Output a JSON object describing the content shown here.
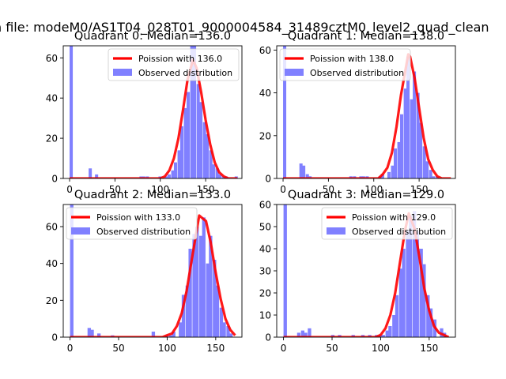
{
  "figure": {
    "suptitle": "n file: modeM0/AS1T04_028T01_9000004584_31489cztM0_level2_quad_clean"
  },
  "colors": {
    "hist": "#8080ff",
    "poisson": "#ff0000",
    "axes": "#000000"
  },
  "chart_data": [
    {
      "type": "bar+line",
      "title": "Quadrant 0: Median=136.0",
      "median": 136.0,
      "xlim": [
        -7,
        190
      ],
      "ylim": [
        0,
        66
      ],
      "xticks": [
        0,
        50,
        100,
        150
      ],
      "yticks": [
        0,
        20,
        40,
        60
      ],
      "legend_position": "top-right",
      "legend": [
        "Poission with 136.0",
        "Observed distribution"
      ],
      "hist": {
        "bin_width": 3.5,
        "bins": [
          [
            0,
            66
          ],
          [
            21,
            5
          ],
          [
            28,
            2
          ],
          [
            77,
            1
          ],
          [
            80,
            1
          ],
          [
            84,
            1
          ],
          [
            98,
            1
          ],
          [
            105,
            1
          ],
          [
            108,
            2
          ],
          [
            112,
            4
          ],
          [
            115,
            8
          ],
          [
            119,
            14
          ],
          [
            122,
            26
          ],
          [
            126,
            35
          ],
          [
            129,
            43
          ],
          [
            133,
            66
          ],
          [
            136,
            66
          ],
          [
            140,
            47
          ],
          [
            143,
            38
          ],
          [
            147,
            28
          ],
          [
            150,
            22
          ],
          [
            154,
            14
          ],
          [
            157,
            7
          ],
          [
            161,
            5
          ],
          [
            164,
            2
          ],
          [
            168,
            1
          ],
          [
            171,
            1
          ],
          [
            182,
            1
          ]
        ]
      },
      "poisson_x": [
        0,
        100,
        105,
        110,
        115,
        120,
        125,
        130,
        136,
        140,
        145,
        150,
        155,
        160,
        165,
        170,
        175,
        180,
        185
      ],
      "poisson_y": [
        0,
        0,
        1,
        4,
        10,
        20,
        34,
        49,
        59,
        55,
        43,
        29,
        17,
        8,
        3,
        1,
        0,
        0,
        0
      ]
    },
    {
      "type": "bar+line",
      "title": "Quadrant 1: Median=138.0",
      "median": 138.0,
      "xlim": [
        -7,
        190
      ],
      "ylim": [
        0,
        62
      ],
      "xticks": [
        0,
        50,
        100,
        150
      ],
      "yticks": [
        0,
        20,
        40,
        60
      ],
      "legend_position": "top-left",
      "legend": [
        "Poission with 138.0",
        "Observed distribution"
      ],
      "hist": {
        "bin_width": 3.5,
        "bins": [
          [
            0,
            62
          ],
          [
            18,
            7
          ],
          [
            21,
            6
          ],
          [
            25,
            2
          ],
          [
            28,
            1
          ],
          [
            73,
            1
          ],
          [
            77,
            1
          ],
          [
            84,
            1
          ],
          [
            87,
            1
          ],
          [
            91,
            1
          ],
          [
            105,
            1
          ],
          [
            108,
            2
          ],
          [
            115,
            3
          ],
          [
            119,
            6
          ],
          [
            122,
            14
          ],
          [
            126,
            17
          ],
          [
            129,
            30
          ],
          [
            133,
            42
          ],
          [
            136,
            57
          ],
          [
            140,
            37
          ],
          [
            143,
            50
          ],
          [
            147,
            40
          ],
          [
            150,
            26
          ],
          [
            154,
            15
          ],
          [
            157,
            8
          ],
          [
            161,
            4
          ],
          [
            164,
            1
          ],
          [
            168,
            1
          ]
        ]
      },
      "poisson_x": [
        0,
        100,
        105,
        110,
        115,
        120,
        125,
        130,
        138,
        140,
        145,
        150,
        155,
        160,
        165,
        170,
        175,
        180,
        185
      ],
      "poisson_y": [
        0,
        0,
        0,
        2,
        5,
        12,
        24,
        39,
        58,
        57,
        47,
        33,
        19,
        9,
        4,
        1,
        0,
        0,
        0
      ]
    },
    {
      "type": "bar+line",
      "title": "Quadrant 2: Median=133.0",
      "median": 133.0,
      "xlim": [
        -7,
        177
      ],
      "ylim": [
        0,
        72
      ],
      "xticks": [
        0,
        50,
        100,
        150
      ],
      "yticks": [
        0,
        20,
        40,
        60
      ],
      "legend_position": "top-left",
      "legend": [
        "Poission with 133.0",
        "Observed distribution"
      ],
      "hist": {
        "bin_width": 3.5,
        "bins": [
          [
            0,
            72
          ],
          [
            18,
            5
          ],
          [
            21,
            4
          ],
          [
            28,
            2
          ],
          [
            42,
            1
          ],
          [
            84,
            3
          ],
          [
            98,
            1
          ],
          [
            102,
            1
          ],
          [
            105,
            3
          ],
          [
            112,
            8
          ],
          [
            115,
            23
          ],
          [
            119,
            28
          ],
          [
            122,
            48
          ],
          [
            126,
            56
          ],
          [
            129,
            60
          ],
          [
            133,
            55
          ],
          [
            136,
            65
          ],
          [
            140,
            40
          ],
          [
            143,
            55
          ],
          [
            147,
            42
          ],
          [
            150,
            28
          ],
          [
            154,
            16
          ],
          [
            157,
            8
          ],
          [
            161,
            6
          ],
          [
            164,
            2
          ]
        ]
      },
      "poisson_x": [
        0,
        95,
        100,
        105,
        110,
        115,
        120,
        125,
        133,
        140,
        145,
        150,
        155,
        160,
        165,
        170
      ],
      "poisson_y": [
        0,
        0,
        1,
        2,
        6,
        13,
        25,
        41,
        66,
        63,
        51,
        35,
        21,
        10,
        4,
        1
      ]
    },
    {
      "type": "bar+line",
      "title": "Quadrant 3: Median=129.0",
      "median": 129.0,
      "xlim": [
        -7,
        177
      ],
      "ylim": [
        0,
        60
      ],
      "xticks": [
        0,
        50,
        100,
        150
      ],
      "yticks": [
        0,
        10,
        20,
        30,
        40,
        50,
        60
      ],
      "legend_position": "top-right",
      "legend": [
        "Poission with 129.0",
        "Observed distribution"
      ],
      "hist": {
        "bin_width": 3.5,
        "bins": [
          [
            0,
            60
          ],
          [
            14,
            2
          ],
          [
            18,
            3
          ],
          [
            21,
            2
          ],
          [
            25,
            4
          ],
          [
            49,
            1
          ],
          [
            56,
            1
          ],
          [
            70,
            1
          ],
          [
            80,
            1
          ],
          [
            87,
            1
          ],
          [
            94,
            1
          ],
          [
            98,
            1
          ],
          [
            101,
            1
          ],
          [
            105,
            3
          ],
          [
            108,
            5
          ],
          [
            112,
            10
          ],
          [
            115,
            19
          ],
          [
            119,
            31
          ],
          [
            122,
            40
          ],
          [
            126,
            48
          ],
          [
            129,
            55
          ],
          [
            133,
            57
          ],
          [
            136,
            48
          ],
          [
            140,
            40
          ],
          [
            143,
            33
          ],
          [
            147,
            19
          ],
          [
            150,
            13
          ],
          [
            154,
            8
          ],
          [
            161,
            4
          ],
          [
            164,
            2
          ]
        ]
      },
      "poisson_x": [
        0,
        95,
        100,
        105,
        110,
        115,
        120,
        125,
        129,
        135,
        140,
        145,
        150,
        155,
        160,
        165,
        170
      ],
      "poisson_y": [
        0,
        0,
        1,
        4,
        10,
        20,
        34,
        48,
        56,
        49,
        36,
        22,
        12,
        5,
        2,
        1,
        0
      ]
    }
  ]
}
